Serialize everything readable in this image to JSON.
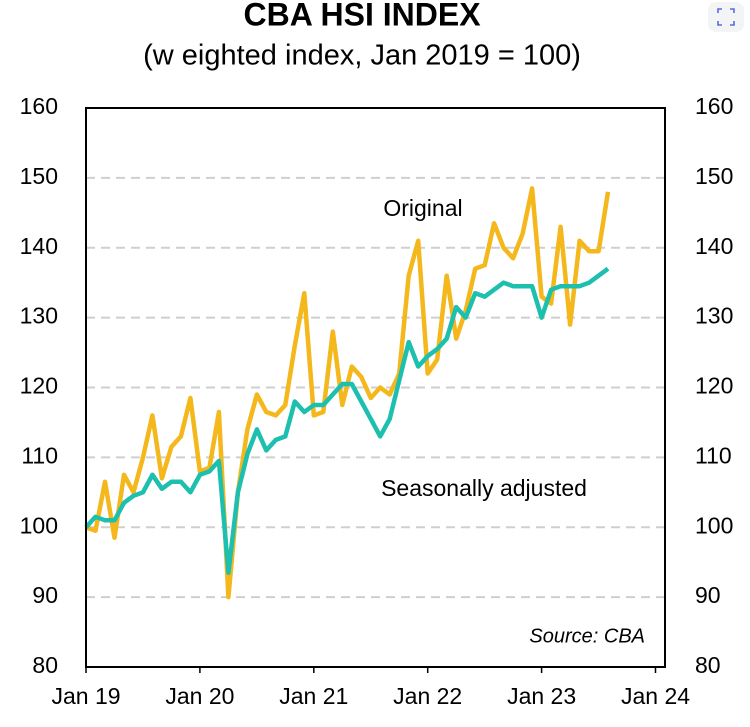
{
  "chart_data": {
    "type": "line",
    "title": "CBA HSI INDEX",
    "subtitle": "(w eighted index, Jan 2019 = 100)",
    "annotations": [
      "Original",
      "Seasonally adjusted",
      "Source: CBA"
    ],
    "x": [
      0,
      1,
      2,
      3,
      4,
      5,
      6,
      7,
      8,
      9,
      10,
      11,
      12,
      13,
      14,
      15,
      16,
      17,
      18,
      19,
      20,
      21,
      22,
      23,
      24,
      25,
      26,
      27,
      28,
      29,
      30,
      31,
      32,
      33,
      34,
      35,
      36,
      37,
      38,
      39,
      40,
      41,
      42,
      43,
      44,
      45,
      46,
      47,
      48,
      49,
      50,
      51,
      52,
      53,
      54,
      55
    ],
    "series": [
      {
        "name": "Original",
        "color": "#f4b71c",
        "values": [
          100,
          99.5,
          106.5,
          98.5,
          107.5,
          105,
          110,
          116,
          107,
          111.5,
          113,
          118.5,
          108,
          108.5,
          116.5,
          90,
          105,
          114,
          119,
          116.5,
          116,
          117.5,
          126,
          133.5,
          116,
          116.5,
          128,
          117.5,
          123,
          121.5,
          118.5,
          120,
          119,
          122,
          136,
          141,
          122,
          124,
          136,
          127,
          131,
          137,
          137.5,
          143.5,
          140,
          138.5,
          142,
          148.5,
          133,
          132,
          143,
          129,
          141,
          139.5,
          139.5,
          148
        ]
      },
      {
        "name": "Seasonally adjusted",
        "color": "#1dbfae",
        "values": [
          100,
          101.5,
          101,
          101,
          103.5,
          104.5,
          105,
          107.5,
          105.5,
          106.5,
          106.5,
          105,
          107.5,
          108,
          109.5,
          93.5,
          105,
          110.5,
          114,
          111,
          112.5,
          113,
          118,
          116.5,
          117.5,
          117.5,
          119,
          120.5,
          120.5,
          118,
          115.5,
          113,
          115.5,
          121,
          126.5,
          123,
          124.5,
          125.5,
          127,
          131.5,
          130,
          133.5,
          133,
          134,
          135,
          134.5,
          134.5,
          134.5,
          130,
          134,
          134.5,
          134.5,
          134.5,
          135,
          136,
          137
        ]
      }
    ],
    "xlim": [
      0,
      61
    ],
    "xticks": [
      {
        "value": 0,
        "label": "Jan 19"
      },
      {
        "value": 12,
        "label": "Jan 20"
      },
      {
        "value": 24,
        "label": "Jan 21"
      },
      {
        "value": 36,
        "label": "Jan 22"
      },
      {
        "value": 48,
        "label": "Jan 23"
      },
      {
        "value": 60,
        "label": "Jan 24"
      }
    ],
    "ylim": [
      80,
      160
    ],
    "yticks": [
      80,
      90,
      100,
      110,
      120,
      130,
      140,
      150,
      160
    ],
    "y2lim": [
      80,
      160
    ],
    "y2ticks": [
      80,
      90,
      100,
      110,
      120,
      130,
      140,
      150,
      160
    ],
    "grid": true
  }
}
